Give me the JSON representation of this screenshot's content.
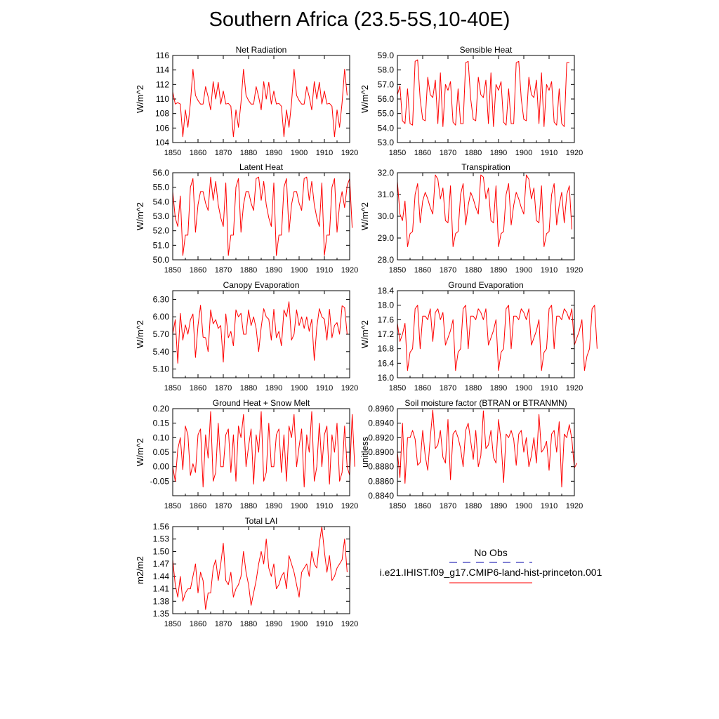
{
  "title": "Southern Africa (23.5-5S,10-40E)",
  "colors": {
    "model": "#ff0000",
    "obs": "#0000aa",
    "axis": "#000000"
  },
  "legend": {
    "entries": [
      {
        "label": "No Obs",
        "style": "dashed",
        "color": "#0000aa"
      },
      {
        "label": "i.e21.IHIST.f09_g17.CMIP6-land-hist-princeton.001",
        "style": "solid",
        "color": "#ff0000"
      }
    ]
  },
  "chart_data": [
    {
      "type": "line",
      "title": "Net Radiation",
      "ylabel": "W/m^2",
      "xlim": [
        1850,
        1920
      ],
      "ylim": [
        104,
        116
      ],
      "xticks": [
        "1850",
        "1860",
        "1870",
        "1880",
        "1890",
        "1900",
        "1910",
        "1920"
      ],
      "yticks": [
        "104",
        "106",
        "108",
        "110",
        "112",
        "114",
        "116"
      ],
      "x_start": 1850,
      "series": [
        {
          "values": [
            111.0,
            109.3,
            109.5,
            109.3,
            104.8,
            108.5,
            106.1,
            109.5,
            114.1,
            110.5,
            109.8,
            109.3,
            109.3,
            111.7,
            110.3,
            108.5,
            112.4,
            110.0,
            112.3,
            109.3,
            111.1,
            109.3,
            109.4,
            109.0,
            104.8,
            108.5,
            106.1,
            109.5,
            114.1,
            110.5,
            109.8,
            109.3,
            109.3,
            111.7,
            110.3,
            108.5,
            112.4,
            110.0,
            112.3,
            109.3,
            111.1,
            109.3,
            109.4,
            109.0,
            104.8,
            108.5,
            106.1,
            109.5,
            114.1,
            110.5,
            109.8,
            109.3,
            109.3,
            111.7,
            110.3,
            108.5,
            112.4,
            110.0,
            112.3,
            109.3,
            111.1,
            109.3,
            109.4,
            109.0,
            104.8,
            108.5,
            106.1,
            109.5,
            114.1,
            110.5
          ]
        }
      ]
    },
    {
      "type": "line",
      "title": "Sensible Heat",
      "ylabel": "W/m^2",
      "xlim": [
        1850,
        1920
      ],
      "ylim": [
        53.0,
        59.0
      ],
      "xticks": [
        "1850",
        "1860",
        "1870",
        "1880",
        "1890",
        "1900",
        "1910",
        "1920"
      ],
      "yticks": [
        "53.0",
        "54.0",
        "55.0",
        "56.0",
        "57.0",
        "58.0",
        "59.0"
      ],
      "x_start": 1850,
      "series": [
        {
          "values": [
            56.3,
            56.9,
            54.5,
            54.3,
            56.7,
            54.3,
            54.2,
            58.6,
            58.7,
            56.0,
            54.6,
            54.5,
            57.5,
            56.3,
            56.1,
            57.3,
            54.3,
            57.8,
            54.1,
            57.0,
            56.6,
            57.2,
            54.4,
            54.2,
            56.7,
            54.3,
            54.3,
            58.5,
            58.6,
            56.0,
            54.6,
            54.5,
            57.5,
            56.3,
            56.1,
            57.3,
            54.3,
            57.8,
            54.1,
            57.0,
            56.6,
            57.2,
            54.4,
            54.2,
            56.7,
            54.3,
            54.3,
            58.5,
            58.6,
            56.0,
            54.6,
            54.5,
            57.5,
            56.3,
            56.1,
            57.3,
            54.3,
            57.8,
            54.1,
            57.0,
            56.6,
            57.2,
            54.4,
            54.2,
            56.7,
            54.3,
            54.1,
            58.5,
            58.5
          ]
        }
      ]
    },
    {
      "type": "line",
      "title": "Latent Heat",
      "ylabel": "W/m^2",
      "xlim": [
        1850,
        1920
      ],
      "ylim": [
        50.0,
        56.0
      ],
      "xticks": [
        "1850",
        "1860",
        "1870",
        "1880",
        "1890",
        "1900",
        "1910",
        "1920"
      ],
      "yticks": [
        "50.0",
        "51.0",
        "52.0",
        "53.0",
        "54.0",
        "55.0",
        "56.0"
      ],
      "x_start": 1850,
      "series": [
        {
          "values": [
            54.7,
            52.9,
            52.3,
            54.4,
            50.3,
            51.7,
            51.7,
            55.0,
            55.6,
            51.9,
            53.8,
            54.7,
            54.7,
            53.9,
            53.4,
            55.7,
            54.1,
            55.4,
            53.8,
            52.9,
            52.3,
            55.3,
            50.3,
            51.7,
            51.7,
            55.0,
            55.6,
            51.9,
            53.8,
            54.7,
            54.7,
            53.9,
            53.4,
            55.6,
            55.7,
            54.1,
            55.4,
            53.8,
            52.9,
            52.3,
            55.3,
            50.3,
            51.7,
            51.7,
            55.0,
            55.6,
            51.9,
            53.8,
            54.7,
            54.7,
            53.9,
            53.4,
            55.6,
            55.7,
            54.1,
            55.4,
            53.8,
            52.9,
            52.3,
            55.3,
            50.3,
            51.7,
            51.7,
            55.0,
            55.6,
            51.9,
            53.8,
            54.7,
            53.6,
            55.1,
            55.6,
            52.2
          ]
        }
      ]
    },
    {
      "type": "line",
      "title": "Transpiration",
      "ylabel": "W/m^2",
      "xlim": [
        1850,
        1920
      ],
      "ylim": [
        28.0,
        32.0
      ],
      "xticks": [
        "1850",
        "1860",
        "1870",
        "1880",
        "1890",
        "1900",
        "1910",
        "1920"
      ],
      "yticks": [
        "28.0",
        "29.0",
        "30.0",
        "31.0",
        "32.0"
      ],
      "x_start": 1850,
      "series": [
        {
          "values": [
            31.6,
            30.1,
            29.8,
            30.7,
            28.6,
            29.2,
            29.3,
            31.0,
            31.5,
            29.7,
            30.7,
            31.1,
            30.8,
            30.4,
            30.1,
            31.9,
            31.7,
            30.8,
            31.3,
            29.8,
            29.7,
            31.4,
            28.6,
            29.2,
            29.3,
            31.0,
            31.5,
            29.6,
            30.5,
            31.1,
            30.8,
            30.4,
            30.1,
            31.9,
            31.8,
            30.8,
            31.3,
            29.8,
            29.7,
            31.4,
            28.6,
            29.2,
            29.3,
            31.0,
            31.5,
            29.6,
            30.5,
            31.1,
            30.8,
            30.4,
            30.1,
            31.9,
            31.7,
            30.8,
            31.3,
            29.8,
            29.7,
            31.4,
            28.6,
            29.2,
            29.3,
            31.0,
            31.5,
            29.6,
            30.5,
            31.1,
            29.7,
            31.0,
            31.4,
            29.4
          ]
        }
      ]
    },
    {
      "type": "line",
      "title": "Canopy Evaporation",
      "ylabel": "W/m^2",
      "xlim": [
        1850,
        1920
      ],
      "ylim": [
        4.95,
        6.45
      ],
      "xticks": [
        "1850",
        "1860",
        "1870",
        "1880",
        "1890",
        "1900",
        "1910",
        "1920"
      ],
      "yticks": [
        "5.10",
        "5.40",
        "5.70",
        "6.00",
        "6.30"
      ],
      "x_start": 1850,
      "series": [
        {
          "values": [
            5.7,
            5.95,
            5.2,
            6.06,
            5.6,
            5.86,
            5.7,
            5.95,
            6.05,
            5.3,
            5.85,
            6.2,
            5.65,
            5.64,
            5.4,
            6.12,
            5.88,
            5.95,
            5.8,
            5.85,
            5.22,
            6.05,
            5.64,
            5.75,
            5.5,
            6.12,
            6.0,
            6.06,
            5.7,
            5.7,
            6.12,
            5.85,
            6.0,
            5.8,
            5.4,
            5.82,
            6.14,
            6.0,
            5.96,
            5.6,
            6.13,
            5.64,
            5.75,
            5.5,
            6.12,
            6.0,
            6.26,
            5.6,
            5.7,
            6.12,
            5.85,
            6.0,
            5.8,
            6.0,
            5.75,
            5.96,
            5.25,
            5.82,
            6.14,
            6.0,
            5.96,
            5.6,
            6.13,
            5.64,
            5.85,
            5.9,
            5.7,
            6.19,
            6.16,
            5.7
          ]
        }
      ]
    },
    {
      "type": "line",
      "title": "Ground Evaporation",
      "ylabel": "W/m^2",
      "xlim": [
        1850,
        1920
      ],
      "ylim": [
        16.0,
        18.4
      ],
      "xticks": [
        "1850",
        "1860",
        "1870",
        "1880",
        "1890",
        "1900",
        "1910",
        "1920"
      ],
      "yticks": [
        "16.0",
        "16.4",
        "16.8",
        "17.2",
        "17.6",
        "18.0",
        "18.4"
      ],
      "x_start": 1850,
      "series": [
        {
          "values": [
            17.5,
            17.0,
            17.2,
            17.5,
            16.2,
            16.7,
            16.8,
            17.9,
            18.0,
            16.8,
            17.7,
            17.7,
            17.6,
            17.9,
            17.0,
            17.8,
            17.9,
            17.6,
            17.8,
            16.9,
            17.1,
            17.3,
            17.6,
            16.2,
            16.7,
            16.8,
            17.9,
            18.0,
            16.8,
            17.7,
            17.7,
            17.6,
            17.9,
            17.8,
            17.6,
            17.9,
            16.9,
            17.1,
            17.3,
            17.6,
            16.2,
            16.7,
            16.8,
            17.9,
            18.0,
            16.8,
            17.7,
            17.7,
            17.6,
            17.9,
            17.8,
            17.6,
            17.9,
            16.9,
            17.1,
            17.3,
            17.6,
            16.2,
            16.7,
            16.8,
            17.9,
            18.0,
            16.8,
            17.7,
            17.7,
            17.6,
            17.9,
            17.8,
            17.6,
            17.9,
            16.9,
            17.1,
            17.3,
            17.6,
            16.2,
            16.6,
            16.8,
            17.9,
            18.0,
            16.8
          ]
        }
      ]
    },
    {
      "type": "line",
      "title": "Ground Heat + Snow Melt",
      "ylabel": "W/m^2",
      "xlim": [
        1850,
        1920
      ],
      "ylim": [
        -0.1,
        0.2
      ],
      "xticks": [
        "1850",
        "1860",
        "1870",
        "1880",
        "1890",
        "1900",
        "1910",
        "1920"
      ],
      "yticks": [
        "-0.05",
        "0.00",
        "0.05",
        "0.10",
        "0.15",
        "0.20"
      ],
      "x_start": 1850,
      "series": [
        {
          "values": [
            0.0,
            -0.05,
            0.06,
            0.1,
            -0.01,
            0.14,
            0.11,
            -0.03,
            0.01,
            -0.02,
            0.11,
            0.13,
            -0.07,
            0.11,
            0.03,
            0.19,
            -0.05,
            -0.02,
            0.15,
            0.0,
            0.0,
            0.11,
            0.13,
            -0.02,
            0.11,
            -0.05,
            0.14,
            0.1,
            0.18,
            0.0,
            0.07,
            0.13,
            -0.06,
            0.11,
            0.05,
            0.19,
            -0.05,
            -0.02,
            0.15,
            0.0,
            0.0,
            0.11,
            0.13,
            -0.02,
            0.11,
            -0.05,
            0.14,
            0.1,
            0.18,
            0.0,
            0.07,
            0.13,
            -0.07,
            0.11,
            0.05,
            0.19,
            -0.05,
            0.0,
            0.15,
            0.0,
            0.11,
            0.14,
            -0.06,
            0.11,
            0.05,
            0.15,
            -0.05,
            -0.02,
            0.14,
            0.0,
            -0.03,
            0.18,
            0.0
          ]
        }
      ]
    },
    {
      "type": "line",
      "title": "Soil moisture factor (BTRAN or BTRANMN)",
      "ylabel": "unitless",
      "xlim": [
        1850,
        1920
      ],
      "ylim": [
        0.884,
        0.896
      ],
      "xticks": [
        "1850",
        "1860",
        "1870",
        "1880",
        "1890",
        "1900",
        "1910",
        "1920"
      ],
      "yticks": [
        "0.8840",
        "0.8860",
        "0.8880",
        "0.8900",
        "0.8920",
        "0.8940",
        "0.8960"
      ],
      "x_start": 1850,
      "series": [
        {
          "values": [
            0.89,
            0.8865,
            0.894,
            0.8857,
            0.892,
            0.892,
            0.893,
            0.8918,
            0.8882,
            0.8886,
            0.893,
            0.8895,
            0.8875,
            0.892,
            0.8958,
            0.8905,
            0.891,
            0.893,
            0.8893,
            0.8885,
            0.8945,
            0.8862,
            0.8925,
            0.893,
            0.892,
            0.8905,
            0.888,
            0.893,
            0.894,
            0.8915,
            0.889,
            0.893,
            0.888,
            0.8895,
            0.8957,
            0.8905,
            0.891,
            0.893,
            0.8893,
            0.8885,
            0.8945,
            0.8915,
            0.8858,
            0.8925,
            0.892,
            0.893,
            0.8918,
            0.8882,
            0.8925,
            0.893,
            0.89,
            0.892,
            0.888,
            0.8895,
            0.892,
            0.8885,
            0.8952,
            0.89,
            0.8905,
            0.8915,
            0.8875,
            0.8925,
            0.893,
            0.89,
            0.8942,
            0.8852,
            0.8925,
            0.892,
            0.8938,
            0.8918,
            0.8878,
            0.8885
          ]
        }
      ]
    },
    {
      "type": "line",
      "title": "Total LAI",
      "ylabel": "m2/m2",
      "xlim": [
        1850,
        1920
      ],
      "ylim": [
        1.35,
        1.56
      ],
      "xticks": [
        "1850",
        "1860",
        "1870",
        "1880",
        "1890",
        "1900",
        "1910",
        "1920"
      ],
      "yticks": [
        "1.35",
        "1.38",
        "1.41",
        "1.44",
        "1.47",
        "1.50",
        "1.53",
        "1.56"
      ],
      "x_start": 1850,
      "series": [
        {
          "values": [
            1.48,
            1.42,
            1.39,
            1.44,
            1.38,
            1.4,
            1.41,
            1.41,
            1.44,
            1.47,
            1.4,
            1.45,
            1.43,
            1.36,
            1.4,
            1.4,
            1.46,
            1.48,
            1.43,
            1.47,
            1.52,
            1.43,
            1.42,
            1.45,
            1.39,
            1.41,
            1.42,
            1.44,
            1.5,
            1.45,
            1.42,
            1.37,
            1.4,
            1.43,
            1.47,
            1.5,
            1.47,
            1.53,
            1.46,
            1.44,
            1.47,
            1.41,
            1.42,
            1.44,
            1.45,
            1.41,
            1.49,
            1.47,
            1.45,
            1.42,
            1.39,
            1.45,
            1.46,
            1.47,
            1.44,
            1.5,
            1.47,
            1.46,
            1.52,
            1.56,
            1.5,
            1.45,
            1.49,
            1.43,
            1.44,
            1.46,
            1.47,
            1.48,
            1.53,
            1.45
          ]
        }
      ]
    }
  ]
}
